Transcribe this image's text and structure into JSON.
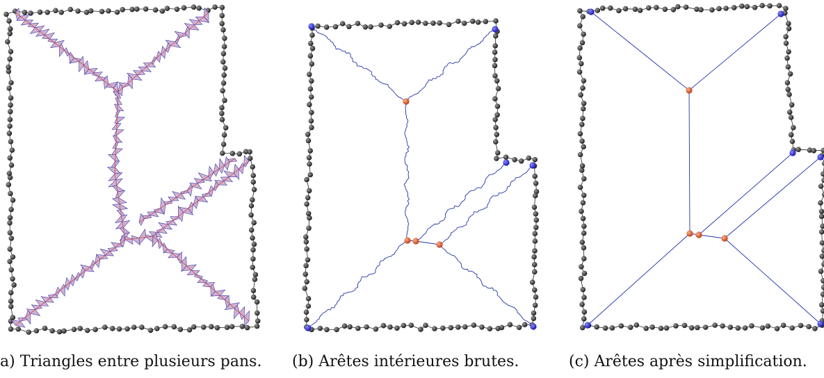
{
  "captions": {
    "a": "a) Triangles entre plusieurs pans.",
    "b": "(b) Arêtes intérieures brutes.",
    "c": "(c) Arêtes après simplification."
  },
  "colors": {
    "boundary_node": "#3a3a3a",
    "corner_node": "#2b2bd6",
    "inner_node": "#d9532a",
    "edge": "#2233aa",
    "triangle_fill": "#c9a3c9"
  }
}
